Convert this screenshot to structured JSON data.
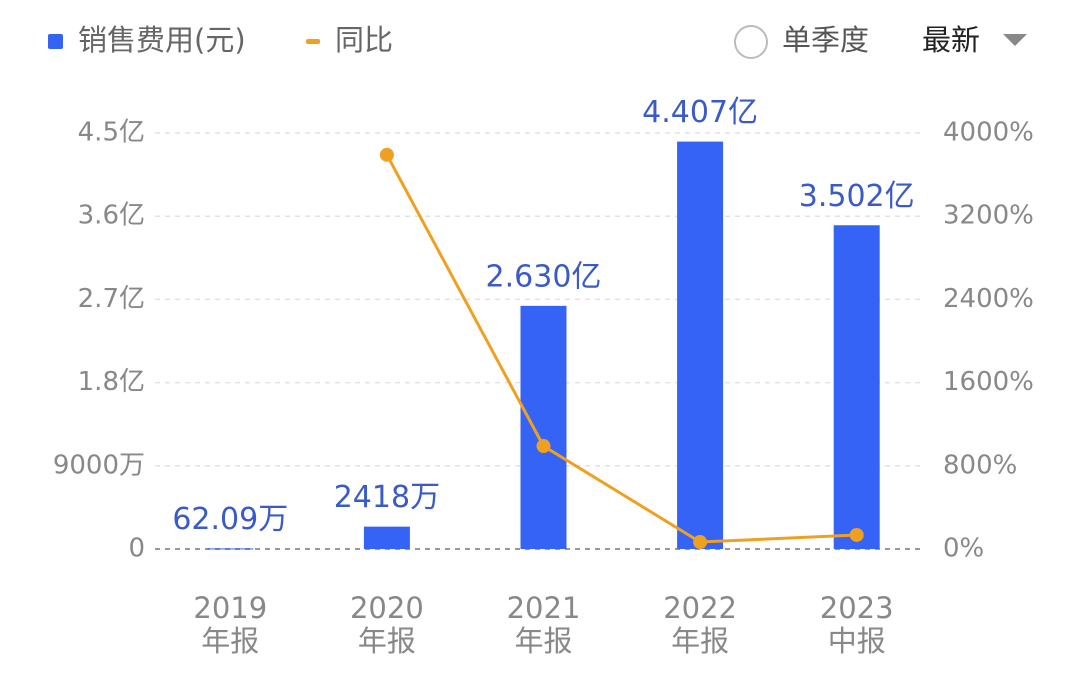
{
  "chart_data": {
    "type": "bar",
    "categories": [
      [
        "2019",
        "年报"
      ],
      [
        "2020",
        "年报"
      ],
      [
        "2021",
        "年报"
      ],
      [
        "2022",
        "年报"
      ],
      [
        "2023",
        "中报"
      ]
    ],
    "series": [
      {
        "name": "销售费用(元)",
        "color": "#3563f5",
        "values": [
          620900,
          24180000,
          263000000,
          440700000,
          350200000
        ],
        "value_labels": [
          "62.09万",
          "2418万",
          "2.630亿",
          "4.407亿",
          "3.502亿"
        ]
      },
      {
        "name": "同比",
        "type": "line",
        "axis": "y2",
        "color": "#f0a020",
        "values": [
          null,
          3790,
          990,
          67,
          135
        ]
      }
    ],
    "ylim": [
      0,
      450000000
    ],
    "yticks": [
      0,
      {
        "value": 90000000,
        "label": "9000万"
      },
      {
        "value": 180000000,
        "label": "1.8亿"
      },
      {
        "value": 270000000,
        "label": "2.7亿"
      },
      {
        "value": 360000000,
        "label": "3.6亿"
      },
      {
        "value": 450000000,
        "label": "4.5亿"
      }
    ],
    "y2lim": [
      0,
      4000
    ],
    "y2ticks": [
      {
        "value": 0,
        "label": "0%"
      },
      {
        "value": 800,
        "label": "800%"
      },
      {
        "value": 1600,
        "label": "1600%"
      },
      {
        "value": 2400,
        "label": "2400%"
      },
      {
        "value": 3200,
        "label": "3200%"
      },
      {
        "value": 4000,
        "label": "4000%"
      }
    ],
    "grid": true,
    "controls": {
      "period": "单季度",
      "sort": "最新"
    }
  }
}
